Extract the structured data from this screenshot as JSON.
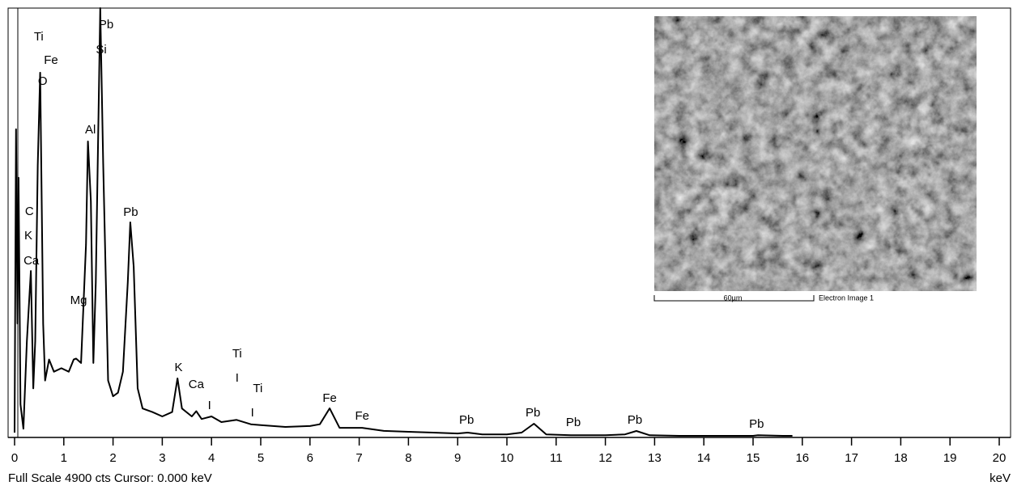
{
  "chart_data": {
    "type": "line",
    "x_label": "keV",
    "footer": "Full Scale 4900 cts  Cursor: 0.000 keV",
    "xlim": [
      0,
      20.2
    ],
    "ylim": [
      0,
      4900
    ],
    "xticks": [
      0,
      1,
      2,
      3,
      4,
      5,
      6,
      7,
      8,
      9,
      10,
      11,
      12,
      13,
      14,
      15,
      16,
      17,
      18,
      19,
      20
    ],
    "series": [
      {
        "color": "#000000",
        "x": [
          0.0,
          0.03,
          0.06,
          0.08,
          0.12,
          0.18,
          0.25,
          0.33,
          0.38,
          0.42,
          0.47,
          0.52,
          0.58,
          0.62,
          0.7,
          0.8,
          0.95,
          1.1,
          1.2,
          1.25,
          1.35,
          1.45,
          1.49,
          1.55,
          1.6,
          1.65,
          1.74,
          1.8,
          1.9,
          2.0,
          2.1,
          2.2,
          2.3,
          2.35,
          2.42,
          2.5,
          2.6,
          2.8,
          3.0,
          3.2,
          3.31,
          3.4,
          3.6,
          3.69,
          3.8,
          4.0,
          4.2,
          4.51,
          4.8,
          5.0,
          5.5,
          6.0,
          6.2,
          6.4,
          6.6,
          7.06,
          7.5,
          8.0,
          8.5,
          9.0,
          9.2,
          9.5,
          10.0,
          10.3,
          10.55,
          10.8,
          11.3,
          12.0,
          12.4,
          12.63,
          12.9,
          13.5,
          14.5,
          15.0,
          15.1,
          15.6,
          15.8
        ],
        "values": [
          55,
          3517,
          1300,
          2963,
          378,
          100,
          1100,
          1900,
          560,
          1100,
          3100,
          4163,
          1300,
          650,
          890,
          750,
          790,
          750,
          890,
          900,
          850,
          2200,
          3378,
          2700,
          850,
          1770,
          4900,
          3140,
          650,
          470,
          510,
          750,
          1770,
          2455,
          1950,
          560,
          330,
          290,
          240,
          290,
          674,
          330,
          240,
          300,
          210,
          240,
          175,
          200,
          150,
          140,
          120,
          130,
          150,
          332,
          110,
          110,
          75,
          65,
          55,
          45,
          55,
          35,
          35,
          55,
          157,
          35,
          25,
          25,
          35,
          74,
          25,
          18,
          18,
          18,
          25,
          18,
          18
        ]
      }
    ],
    "annotations": [
      {
        "text": "Ti",
        "x": 0.49,
        "y": 4568
      },
      {
        "text": "Fe",
        "x": 0.74,
        "y": 4301
      },
      {
        "text": "O",
        "x": 0.57,
        "y": 4061
      },
      {
        "text": "Pb",
        "x": 1.86,
        "y": 4707
      },
      {
        "text": "Si",
        "x": 1.76,
        "y": 4421
      },
      {
        "text": "Al",
        "x": 1.54,
        "y": 3507
      },
      {
        "text": "C",
        "x": 0.3,
        "y": 2575
      },
      {
        "text": "K",
        "x": 0.28,
        "y": 2298
      },
      {
        "text": "Ca",
        "x": 0.34,
        "y": 2012
      },
      {
        "text": "Mg",
        "x": 1.3,
        "y": 1560
      },
      {
        "text": "Pb",
        "x": 2.36,
        "y": 2566
      },
      {
        "text": "K",
        "x": 3.33,
        "y": 794
      },
      {
        "text": "Ca",
        "x": 3.69,
        "y": 600
      },
      {
        "text": "I",
        "x": 3.96,
        "y": 360
      },
      {
        "text": "Ti",
        "x": 4.52,
        "y": 951
      },
      {
        "text": "I",
        "x": 4.52,
        "y": 674
      },
      {
        "text": "Ti",
        "x": 4.94,
        "y": 554
      },
      {
        "text": "I",
        "x": 4.83,
        "y": 277
      },
      {
        "text": "Fe",
        "x": 6.4,
        "y": 443
      },
      {
        "text": "Fe",
        "x": 7.06,
        "y": 240
      },
      {
        "text": "Pb",
        "x": 9.18,
        "y": 194
      },
      {
        "text": "Pb",
        "x": 10.53,
        "y": 277
      },
      {
        "text": "Pb",
        "x": 11.35,
        "y": 166
      },
      {
        "text": "Pb",
        "x": 12.6,
        "y": 194
      },
      {
        "text": "Pb",
        "x": 15.07,
        "y": 148
      }
    ],
    "inset": {
      "scale_label": "60µm",
      "caption": "Electron Image 1"
    }
  }
}
